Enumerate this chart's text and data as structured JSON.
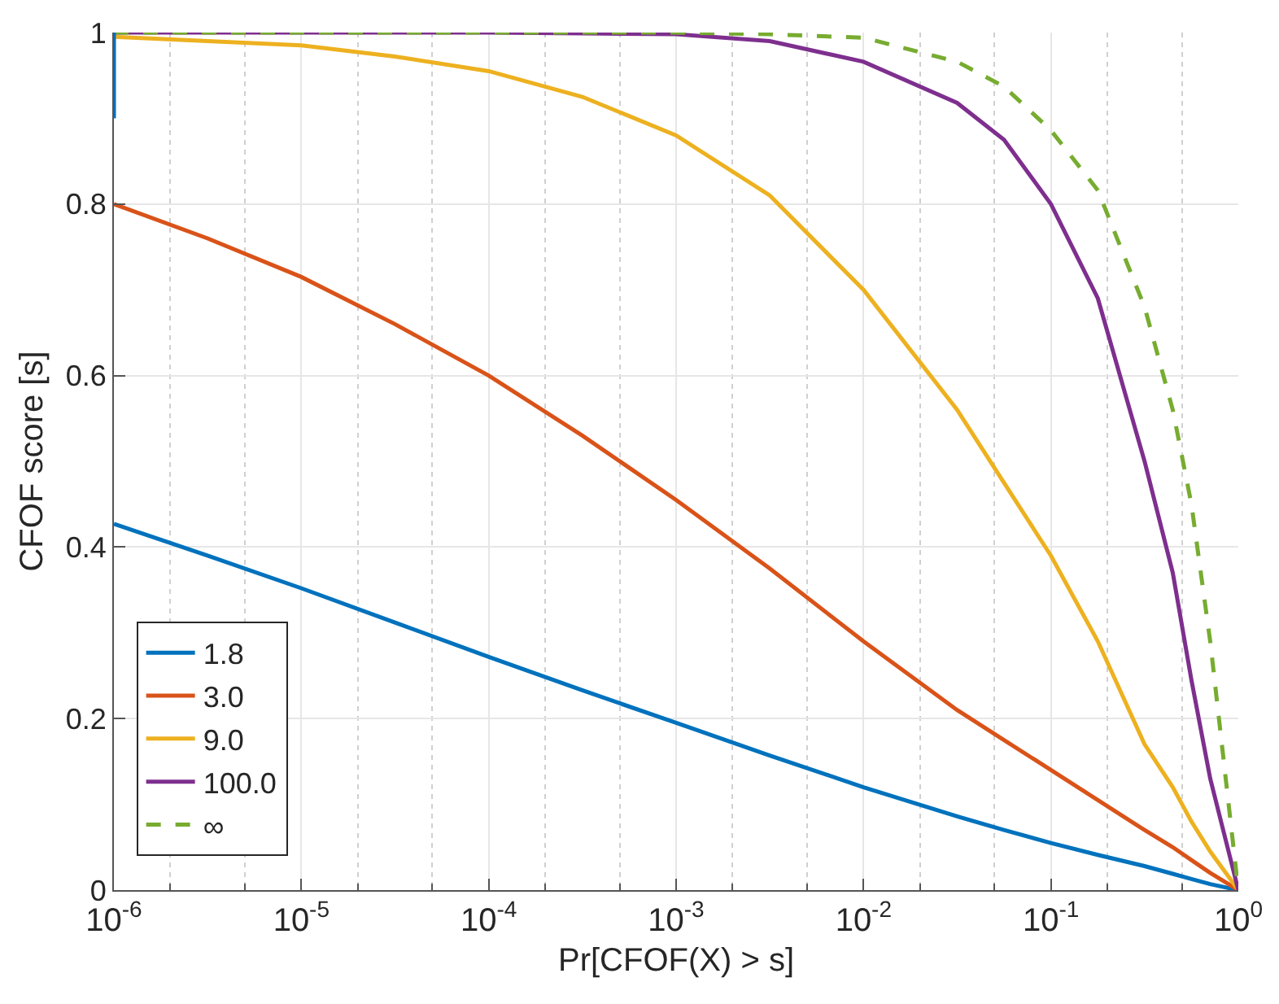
{
  "chart_data": {
    "type": "line",
    "xlabel": "Pr[CFOF(X) > s]",
    "ylabel": "CFOF score [s]",
    "log": "x",
    "grid": true,
    "legend": "bottom left",
    "xlim": [
      1e-06,
      1
    ],
    "ylim": [
      0,
      1
    ],
    "xticks": [
      {
        "value": 1e-06,
        "label": "10$^{-6}$"
      },
      {
        "value": 1e-05,
        "label": "10$^{-5}$"
      },
      {
        "value": 0.0001,
        "label": "10$^{-4}$"
      },
      {
        "value": 0.001,
        "label": "10$^{-3}$"
      },
      {
        "value": 0.01,
        "label": "10$^{-2}$"
      },
      {
        "value": 0.1,
        "label": "10$^{-1}$"
      },
      {
        "value": 1,
        "label": "10$^{0}$"
      }
    ],
    "yticks": [
      0,
      0.2,
      0.4,
      0.6,
      0.8,
      1
    ],
    "x": [
      1e-06,
      3.16e-06,
      1e-05,
      3.16e-05,
      0.0001,
      0.000316,
      0.001,
      0.00316,
      0.01,
      0.0316,
      0.0562,
      0.1,
      0.178,
      0.316,
      0.447,
      0.562,
      0.708,
      1
    ],
    "series": [
      {
        "name": "1.8",
        "color": "#0072bd",
        "line_style": "solid",
        "values": [
          0.427,
          0.39,
          0.352,
          0.312,
          0.272,
          0.233,
          0.195,
          0.157,
          0.12,
          0.086,
          0.07,
          0.055,
          0.041,
          0.028,
          0.019,
          0.013,
          0.007,
          0
        ]
      },
      {
        "name": "3.0",
        "color": "#d95319",
        "line_style": "solid",
        "values": [
          0.8,
          0.76,
          0.715,
          0.66,
          0.6,
          0.53,
          0.455,
          0.375,
          0.29,
          0.21,
          0.175,
          0.14,
          0.105,
          0.07,
          0.05,
          0.035,
          0.02,
          0
        ]
      },
      {
        "name": "9.0",
        "color": "#edb120",
        "line_style": "solid",
        "values": [
          0.995,
          0.99,
          0.985,
          0.972,
          0.955,
          0.925,
          0.88,
          0.81,
          0.7,
          0.56,
          0.475,
          0.39,
          0.29,
          0.17,
          0.12,
          0.08,
          0.045,
          0
        ]
      },
      {
        "name": "100.0",
        "color": "#7e2f8e",
        "line_style": "solid",
        "values": [
          1.0,
          1.0,
          1.0,
          1.0,
          1.0,
          0.999,
          0.998,
          0.99,
          0.966,
          0.918,
          0.875,
          0.8,
          0.69,
          0.5,
          0.37,
          0.245,
          0.13,
          0
        ]
      },
      {
        "name": "∞",
        "color": "#77ac30",
        "line_style": "dashed",
        "values": [
          1.0,
          1.0,
          1.0,
          1.0,
          1.0,
          1.0,
          1.0,
          0.998,
          0.994,
          0.966,
          0.937,
          0.886,
          0.816,
          0.68,
          0.56,
          0.45,
          0.29,
          0
        ]
      },
      {
        "color": "#0072bd",
        "line_style": "solid",
        "x": [
          1e-06,
          1e-06
        ],
        "values": [
          0.9,
          1.0
        ]
      }
    ]
  }
}
